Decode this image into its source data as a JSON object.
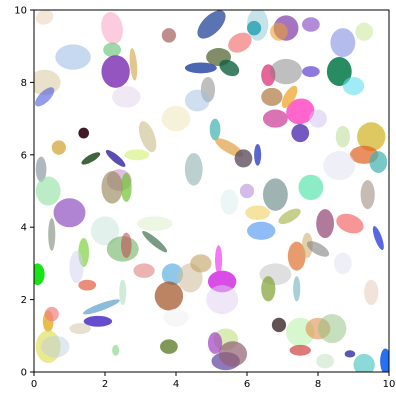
{
  "chart_data": {
    "type": "scatter",
    "title": "",
    "xlabel": "",
    "ylabel": "",
    "xlim": [
      0,
      10
    ],
    "ylim": [
      0,
      10
    ],
    "grid": false,
    "legend": "none",
    "xticks": [
      "0",
      "2",
      "4",
      "6",
      "8",
      "10"
    ],
    "yticks": [
      "0",
      "2",
      "4",
      "6",
      "8",
      "10"
    ],
    "xtick_values": [
      0,
      2,
      4,
      6,
      8,
      10
    ],
    "ytick_values": [
      0,
      2,
      4,
      6,
      8,
      10
    ],
    "mark": "ellipse",
    "ellipses": [
      {
        "x": 0.3,
        "y": 9.8,
        "w": 0.5,
        "h": 0.4,
        "angle": 20,
        "color": "#e8d0b0",
        "alpha": 0.5
      },
      {
        "x": 0.3,
        "y": 8.0,
        "w": 0.9,
        "h": 0.7,
        "angle": 0,
        "color": "#d8c8a0",
        "alpha": 0.55
      },
      {
        "x": 0.3,
        "y": 7.6,
        "w": 0.7,
        "h": 0.3,
        "angle": 45,
        "color": "#4a5adc",
        "alpha": 0.6
      },
      {
        "x": 1.1,
        "y": 8.7,
        "w": 1.0,
        "h": 0.7,
        "angle": 0,
        "color": "#a0c0e8",
        "alpha": 0.6
      },
      {
        "x": 2.2,
        "y": 9.5,
        "w": 0.6,
        "h": 0.9,
        "angle": 10,
        "color": "#f8a8c8",
        "alpha": 0.6
      },
      {
        "x": 2.2,
        "y": 8.9,
        "w": 0.5,
        "h": 0.4,
        "angle": 0,
        "color": "#60c070",
        "alpha": 0.6
      },
      {
        "x": 2.3,
        "y": 8.3,
        "w": 0.8,
        "h": 0.9,
        "angle": 0,
        "color": "#7a2ab0",
        "alpha": 0.8
      },
      {
        "x": 2.8,
        "y": 8.5,
        "w": 0.2,
        "h": 0.9,
        "angle": 5,
        "color": "#d0a040",
        "alpha": 0.6
      },
      {
        "x": 2.6,
        "y": 7.6,
        "w": 0.8,
        "h": 0.6,
        "angle": 0,
        "color": "#e8d8f0",
        "alpha": 0.6
      },
      {
        "x": 3.8,
        "y": 9.3,
        "w": 0.4,
        "h": 0.4,
        "angle": 0,
        "color": "#b07070",
        "alpha": 0.8
      },
      {
        "x": 5.0,
        "y": 9.6,
        "w": 1.0,
        "h": 0.5,
        "angle": 45,
        "color": "#3050a0",
        "alpha": 0.8
      },
      {
        "x": 5.2,
        "y": 8.7,
        "w": 0.7,
        "h": 0.5,
        "angle": 0,
        "color": "#607040",
        "alpha": 0.8
      },
      {
        "x": 4.7,
        "y": 8.4,
        "w": 0.9,
        "h": 0.3,
        "angle": 0,
        "color": "#2040a0",
        "alpha": 0.8
      },
      {
        "x": 5.5,
        "y": 8.4,
        "w": 0.6,
        "h": 0.4,
        "angle": -30,
        "color": "#106040",
        "alpha": 0.8
      },
      {
        "x": 4.9,
        "y": 7.8,
        "w": 0.4,
        "h": 0.7,
        "angle": 0,
        "color": "#808080",
        "alpha": 0.5
      },
      {
        "x": 4.6,
        "y": 7.5,
        "w": 0.7,
        "h": 0.6,
        "angle": 0,
        "color": "#a0c0e0",
        "alpha": 0.5
      },
      {
        "x": 4.0,
        "y": 7.0,
        "w": 0.8,
        "h": 0.7,
        "angle": 0,
        "color": "#f0e8c0",
        "alpha": 0.6
      },
      {
        "x": 5.8,
        "y": 9.1,
        "w": 0.7,
        "h": 0.5,
        "angle": 30,
        "color": "#f06060",
        "alpha": 0.6
      },
      {
        "x": 6.3,
        "y": 9.6,
        "w": 0.6,
        "h": 0.9,
        "angle": 0,
        "color": "#a0d0e0",
        "alpha": 0.6
      },
      {
        "x": 6.2,
        "y": 9.5,
        "w": 0.4,
        "h": 0.4,
        "angle": 0,
        "color": "#20a0b0",
        "alpha": 0.8
      },
      {
        "x": 7.1,
        "y": 9.5,
        "w": 0.7,
        "h": 0.7,
        "angle": 0,
        "color": "#9050b0",
        "alpha": 0.8
      },
      {
        "x": 6.9,
        "y": 9.4,
        "w": 0.5,
        "h": 0.5,
        "angle": 0,
        "color": "#e8a030",
        "alpha": 0.6
      },
      {
        "x": 7.8,
        "y": 9.6,
        "w": 0.5,
        "h": 0.4,
        "angle": 0,
        "color": "#8040c0",
        "alpha": 0.6
      },
      {
        "x": 8.7,
        "y": 9.1,
        "w": 0.7,
        "h": 0.8,
        "angle": 0,
        "color": "#8090e0",
        "alpha": 0.6
      },
      {
        "x": 9.3,
        "y": 9.4,
        "w": 0.5,
        "h": 0.5,
        "angle": 0,
        "color": "#d0e8a0",
        "alpha": 0.6
      },
      {
        "x": 6.6,
        "y": 8.2,
        "w": 0.4,
        "h": 0.6,
        "angle": 0,
        "color": "#e04080",
        "alpha": 0.8
      },
      {
        "x": 7.1,
        "y": 8.3,
        "w": 0.9,
        "h": 0.7,
        "angle": 0,
        "color": "#808080",
        "alpha": 0.5
      },
      {
        "x": 7.8,
        "y": 8.3,
        "w": 0.5,
        "h": 0.3,
        "angle": 0,
        "color": "#6040d0",
        "alpha": 0.7
      },
      {
        "x": 8.6,
        "y": 8.3,
        "w": 0.7,
        "h": 0.8,
        "angle": 0,
        "color": "#108050",
        "alpha": 0.9
      },
      {
        "x": 9.0,
        "y": 7.9,
        "w": 0.6,
        "h": 0.5,
        "angle": 0,
        "color": "#60e0f0",
        "alpha": 0.6
      },
      {
        "x": 7.5,
        "y": 7.2,
        "w": 0.8,
        "h": 0.7,
        "angle": 20,
        "color": "#ff40c0",
        "alpha": 0.8
      },
      {
        "x": 6.8,
        "y": 7.0,
        "w": 0.7,
        "h": 0.5,
        "angle": 0,
        "color": "#d050a0",
        "alpha": 0.8
      },
      {
        "x": 6.7,
        "y": 7.6,
        "w": 0.6,
        "h": 0.5,
        "angle": 0,
        "color": "#a06020",
        "alpha": 0.6
      },
      {
        "x": 7.2,
        "y": 7.6,
        "w": 0.7,
        "h": 0.3,
        "angle": 60,
        "color": "#f0a020",
        "alpha": 0.7
      },
      {
        "x": 7.5,
        "y": 6.6,
        "w": 0.5,
        "h": 0.5,
        "angle": 0,
        "color": "#5030b0",
        "alpha": 0.8
      },
      {
        "x": 8.0,
        "y": 7.0,
        "w": 0.5,
        "h": 0.5,
        "angle": 0,
        "color": "#d0c0f0",
        "alpha": 0.5
      },
      {
        "x": 8.7,
        "y": 6.5,
        "w": 0.4,
        "h": 0.6,
        "angle": 0,
        "color": "#c0e0a0",
        "alpha": 0.6
      },
      {
        "x": 9.5,
        "y": 6.5,
        "w": 0.8,
        "h": 0.8,
        "angle": 0,
        "color": "#d0b020",
        "alpha": 0.7
      },
      {
        "x": 9.3,
        "y": 6.0,
        "w": 0.8,
        "h": 0.5,
        "angle": 0,
        "color": "#e06020",
        "alpha": 0.7
      },
      {
        "x": 9.7,
        "y": 5.8,
        "w": 0.5,
        "h": 0.6,
        "angle": 0,
        "color": "#40b0b0",
        "alpha": 0.7
      },
      {
        "x": 0.2,
        "y": 5.6,
        "w": 0.3,
        "h": 0.7,
        "angle": 0,
        "color": "#607080",
        "alpha": 0.5
      },
      {
        "x": 0.4,
        "y": 5.0,
        "w": 0.7,
        "h": 0.8,
        "angle": 0,
        "color": "#90e0a0",
        "alpha": 0.6
      },
      {
        "x": 0.7,
        "y": 6.2,
        "w": 0.4,
        "h": 0.4,
        "angle": 0,
        "color": "#d0a030",
        "alpha": 0.7
      },
      {
        "x": 1.4,
        "y": 6.6,
        "w": 0.3,
        "h": 0.3,
        "angle": 0,
        "color": "#300010",
        "alpha": 0.9
      },
      {
        "x": 1.6,
        "y": 5.9,
        "w": 0.6,
        "h": 0.2,
        "angle": 30,
        "color": "#104010",
        "alpha": 0.8
      },
      {
        "x": 2.3,
        "y": 5.9,
        "w": 0.7,
        "h": 0.2,
        "angle": -40,
        "color": "#3020a0",
        "alpha": 0.8
      },
      {
        "x": 2.9,
        "y": 6.0,
        "w": 0.7,
        "h": 0.3,
        "angle": 0,
        "color": "#d0f070",
        "alpha": 0.6
      },
      {
        "x": 3.2,
        "y": 6.5,
        "w": 0.4,
        "h": 0.9,
        "angle": 20,
        "color": "#c0b070",
        "alpha": 0.5
      },
      {
        "x": 2.4,
        "y": 5.3,
        "w": 0.7,
        "h": 0.6,
        "angle": 0,
        "color": "#c080c0",
        "alpha": 0.5
      },
      {
        "x": 2.2,
        "y": 5.1,
        "w": 0.6,
        "h": 0.9,
        "angle": 0,
        "color": "#908050",
        "alpha": 0.6
      },
      {
        "x": 2.6,
        "y": 5.1,
        "w": 0.3,
        "h": 0.8,
        "angle": 0,
        "color": "#70c030",
        "alpha": 0.7
      },
      {
        "x": 4.5,
        "y": 5.6,
        "w": 0.5,
        "h": 0.9,
        "angle": 0,
        "color": "#90b0b0",
        "alpha": 0.6
      },
      {
        "x": 5.1,
        "y": 6.7,
        "w": 0.3,
        "h": 0.6,
        "angle": 0,
        "color": "#40b0b0",
        "alpha": 0.7
      },
      {
        "x": 5.5,
        "y": 6.2,
        "w": 0.9,
        "h": 0.3,
        "angle": -30,
        "color": "#e0a040",
        "alpha": 0.7
      },
      {
        "x": 5.9,
        "y": 5.9,
        "w": 0.5,
        "h": 0.5,
        "angle": 0,
        "color": "#605060",
        "alpha": 0.8
      },
      {
        "x": 6.3,
        "y": 6.0,
        "w": 0.2,
        "h": 0.6,
        "angle": 0,
        "color": "#3040c0",
        "alpha": 0.8
      },
      {
        "x": 6.8,
        "y": 4.9,
        "w": 0.7,
        "h": 0.9,
        "angle": 0,
        "color": "#608080",
        "alpha": 0.6
      },
      {
        "x": 7.8,
        "y": 5.1,
        "w": 0.7,
        "h": 0.7,
        "angle": 0,
        "color": "#40e0a0",
        "alpha": 0.6
      },
      {
        "x": 8.6,
        "y": 5.7,
        "w": 0.9,
        "h": 0.8,
        "angle": 0,
        "color": "#e0e0f0",
        "alpha": 0.5
      },
      {
        "x": 9.4,
        "y": 4.9,
        "w": 0.4,
        "h": 0.8,
        "angle": 0,
        "color": "#a09080",
        "alpha": 0.6
      },
      {
        "x": 6.0,
        "y": 5.0,
        "w": 0.4,
        "h": 0.4,
        "angle": 0,
        "color": "#c0a0e0",
        "alpha": 0.7
      },
      {
        "x": 6.3,
        "y": 4.4,
        "w": 0.7,
        "h": 0.4,
        "angle": 0,
        "color": "#f0d060",
        "alpha": 0.6
      },
      {
        "x": 5.5,
        "y": 4.7,
        "w": 0.5,
        "h": 0.7,
        "angle": 0,
        "color": "#e0f0f0",
        "alpha": 0.6
      },
      {
        "x": 7.2,
        "y": 4.3,
        "w": 0.7,
        "h": 0.3,
        "angle": 30,
        "color": "#a0b040",
        "alpha": 0.6
      },
      {
        "x": 6.4,
        "y": 3.9,
        "w": 0.8,
        "h": 0.5,
        "angle": 0,
        "color": "#60a0f0",
        "alpha": 0.7
      },
      {
        "x": 8.2,
        "y": 4.1,
        "w": 0.5,
        "h": 0.8,
        "angle": 0,
        "color": "#904070",
        "alpha": 0.7
      },
      {
        "x": 8.9,
        "y": 4.1,
        "w": 0.8,
        "h": 0.5,
        "angle": -20,
        "color": "#f05050",
        "alpha": 0.6
      },
      {
        "x": 9.7,
        "y": 3.7,
        "w": 0.2,
        "h": 0.7,
        "angle": 20,
        "color": "#3040e0",
        "alpha": 0.8
      },
      {
        "x": 1.0,
        "y": 4.4,
        "w": 0.9,
        "h": 0.8,
        "angle": 0,
        "color": "#9050c0",
        "alpha": 0.7
      },
      {
        "x": 1.4,
        "y": 3.3,
        "w": 0.3,
        "h": 0.8,
        "angle": 0,
        "color": "#80d040",
        "alpha": 0.7
      },
      {
        "x": 0.5,
        "y": 3.8,
        "w": 0.2,
        "h": 0.9,
        "angle": 0,
        "color": "#607060",
        "alpha": 0.5
      },
      {
        "x": 2.0,
        "y": 3.9,
        "w": 0.8,
        "h": 0.8,
        "angle": 0,
        "color": "#d0e8e0",
        "alpha": 0.6
      },
      {
        "x": 2.5,
        "y": 3.4,
        "w": 0.9,
        "h": 0.7,
        "angle": 0,
        "color": "#70b060",
        "alpha": 0.6
      },
      {
        "x": 2.6,
        "y": 3.5,
        "w": 0.3,
        "h": 0.7,
        "angle": 0,
        "color": "#c05050",
        "alpha": 0.6
      },
      {
        "x": 3.4,
        "y": 4.1,
        "w": 1.0,
        "h": 0.4,
        "angle": 0,
        "color": "#e0f0d0",
        "alpha": 0.6
      },
      {
        "x": 3.4,
        "y": 3.6,
        "w": 0.9,
        "h": 0.2,
        "angle": -40,
        "color": "#407050",
        "alpha": 0.7
      },
      {
        "x": 3.1,
        "y": 2.8,
        "w": 0.6,
        "h": 0.4,
        "angle": 0,
        "color": "#e08080",
        "alpha": 0.6
      },
      {
        "x": 3.9,
        "y": 2.7,
        "w": 0.6,
        "h": 0.6,
        "angle": 0,
        "color": "#60b0e0",
        "alpha": 0.7
      },
      {
        "x": 4.4,
        "y": 2.6,
        "w": 0.7,
        "h": 0.8,
        "angle": 0,
        "color": "#d0c0a0",
        "alpha": 0.6
      },
      {
        "x": 4.7,
        "y": 3.0,
        "w": 0.6,
        "h": 0.5,
        "angle": 0,
        "color": "#c0a060",
        "alpha": 0.6
      },
      {
        "x": 3.8,
        "y": 2.1,
        "w": 0.8,
        "h": 0.8,
        "angle": 0,
        "color": "#a05020",
        "alpha": 0.7
      },
      {
        "x": 5.3,
        "y": 2.5,
        "w": 0.8,
        "h": 0.6,
        "angle": 0,
        "color": "#d020e0",
        "alpha": 0.8
      },
      {
        "x": 5.2,
        "y": 3.1,
        "w": 0.2,
        "h": 0.8,
        "angle": 0,
        "color": "#f040f0",
        "alpha": 0.7
      },
      {
        "x": 5.3,
        "y": 2.0,
        "w": 0.9,
        "h": 0.8,
        "angle": 0,
        "color": "#e0d0f0",
        "alpha": 0.5
      },
      {
        "x": 6.8,
        "y": 2.7,
        "w": 0.9,
        "h": 0.6,
        "angle": 0,
        "color": "#c0c0c0",
        "alpha": 0.5
      },
      {
        "x": 6.6,
        "y": 2.3,
        "w": 0.4,
        "h": 0.7,
        "angle": 0,
        "color": "#80a030",
        "alpha": 0.7
      },
      {
        "x": 7.4,
        "y": 2.3,
        "w": 0.2,
        "h": 0.7,
        "angle": 0,
        "color": "#70b0c0",
        "alpha": 0.6
      },
      {
        "x": 7.4,
        "y": 3.2,
        "w": 0.5,
        "h": 0.8,
        "angle": 0,
        "color": "#e07030",
        "alpha": 0.7
      },
      {
        "x": 7.7,
        "y": 3.5,
        "w": 0.3,
        "h": 0.7,
        "angle": 0,
        "color": "#d0b070",
        "alpha": 0.6
      },
      {
        "x": 8.0,
        "y": 3.4,
        "w": 0.7,
        "h": 0.3,
        "angle": -30,
        "color": "#808080",
        "alpha": 0.6
      },
      {
        "x": 8.7,
        "y": 3.0,
        "w": 0.5,
        "h": 0.6,
        "angle": 0,
        "color": "#e0e0f0",
        "alpha": 0.5
      },
      {
        "x": 9.5,
        "y": 2.2,
        "w": 0.4,
        "h": 0.7,
        "angle": 0,
        "color": "#e8d0c0",
        "alpha": 0.6
      },
      {
        "x": 0.1,
        "y": 2.7,
        "w": 0.4,
        "h": 0.6,
        "angle": 0,
        "color": "#00e000",
        "alpha": 0.9
      },
      {
        "x": 1.5,
        "y": 2.4,
        "w": 0.5,
        "h": 0.3,
        "angle": 0,
        "color": "#e06040",
        "alpha": 0.7
      },
      {
        "x": 1.9,
        "y": 1.8,
        "w": 1.1,
        "h": 0.2,
        "angle": 20,
        "color": "#4090c0",
        "alpha": 0.6
      },
      {
        "x": 1.8,
        "y": 1.4,
        "w": 0.8,
        "h": 0.3,
        "angle": 0,
        "color": "#4020c0",
        "alpha": 0.8
      },
      {
        "x": 2.5,
        "y": 2.2,
        "w": 0.2,
        "h": 0.7,
        "angle": 0,
        "color": "#b0e0c0",
        "alpha": 0.6
      },
      {
        "x": 0.4,
        "y": 1.4,
        "w": 0.3,
        "h": 0.6,
        "angle": 0,
        "color": "#e0a000",
        "alpha": 0.7
      },
      {
        "x": 0.5,
        "y": 1.6,
        "w": 0.4,
        "h": 0.4,
        "angle": 0,
        "color": "#f08080",
        "alpha": 0.7
      },
      {
        "x": 0.4,
        "y": 0.7,
        "w": 0.7,
        "h": 0.9,
        "angle": 0,
        "color": "#e0e060",
        "alpha": 0.7
      },
      {
        "x": 0.6,
        "y": 0.7,
        "w": 0.8,
        "h": 0.6,
        "angle": 0,
        "color": "#c0d0e0",
        "alpha": 0.5
      },
      {
        "x": 1.3,
        "y": 1.2,
        "w": 0.6,
        "h": 0.3,
        "angle": 0,
        "color": "#d0c0a0",
        "alpha": 0.5
      },
      {
        "x": 2.3,
        "y": 0.6,
        "w": 0.2,
        "h": 0.3,
        "angle": 0,
        "color": "#80d080",
        "alpha": 0.6
      },
      {
        "x": 3.8,
        "y": 0.7,
        "w": 0.5,
        "h": 0.4,
        "angle": 0,
        "color": "#608030",
        "alpha": 0.8
      },
      {
        "x": 5.4,
        "y": 0.9,
        "w": 0.7,
        "h": 0.6,
        "angle": 0,
        "color": "#c0e080",
        "alpha": 0.6
      },
      {
        "x": 5.1,
        "y": 0.8,
        "w": 0.4,
        "h": 0.6,
        "angle": 0,
        "color": "#a040c0",
        "alpha": 0.7
      },
      {
        "x": 5.4,
        "y": 0.3,
        "w": 0.8,
        "h": 0.5,
        "angle": 0,
        "color": "#6040a0",
        "alpha": 0.7
      },
      {
        "x": 5.6,
        "y": 0.5,
        "w": 0.8,
        "h": 0.7,
        "angle": 0,
        "color": "#906070",
        "alpha": 0.7
      },
      {
        "x": 6.9,
        "y": 1.3,
        "w": 0.4,
        "h": 0.4,
        "angle": 0,
        "color": "#504040",
        "alpha": 0.9
      },
      {
        "x": 7.5,
        "y": 1.1,
        "w": 0.8,
        "h": 0.8,
        "angle": 0,
        "color": "#b0f0a0",
        "alpha": 0.5
      },
      {
        "x": 8.0,
        "y": 1.2,
        "w": 0.7,
        "h": 0.6,
        "angle": 0,
        "color": "#e09050",
        "alpha": 0.6
      },
      {
        "x": 8.4,
        "y": 1.2,
        "w": 0.8,
        "h": 0.8,
        "angle": 0,
        "color": "#90c080",
        "alpha": 0.5
      },
      {
        "x": 7.5,
        "y": 0.6,
        "w": 0.6,
        "h": 0.3,
        "angle": 0,
        "color": "#d04040",
        "alpha": 0.7
      },
      {
        "x": 8.2,
        "y": 0.3,
        "w": 0.5,
        "h": 0.4,
        "angle": 0,
        "color": "#c0e0c0",
        "alpha": 0.5
      },
      {
        "x": 8.9,
        "y": 0.5,
        "w": 0.3,
        "h": 0.2,
        "angle": 0,
        "color": "#3030a0",
        "alpha": 0.8
      },
      {
        "x": 9.3,
        "y": 0.2,
        "w": 0.6,
        "h": 0.6,
        "angle": 0,
        "color": "#40c0c0",
        "alpha": 0.6
      },
      {
        "x": 9.9,
        "y": 0.3,
        "w": 0.3,
        "h": 0.7,
        "angle": 0,
        "color": "#1060f0",
        "alpha": 0.9
      },
      {
        "x": 1.2,
        "y": 2.9,
        "w": 0.4,
        "h": 0.9,
        "angle": 0,
        "color": "#d0d0f0",
        "alpha": 0.5
      },
      {
        "x": 4.0,
        "y": 1.5,
        "w": 0.7,
        "h": 0.5,
        "angle": 0,
        "color": "#f0f0f0",
        "alpha": 0.5
      }
    ]
  }
}
